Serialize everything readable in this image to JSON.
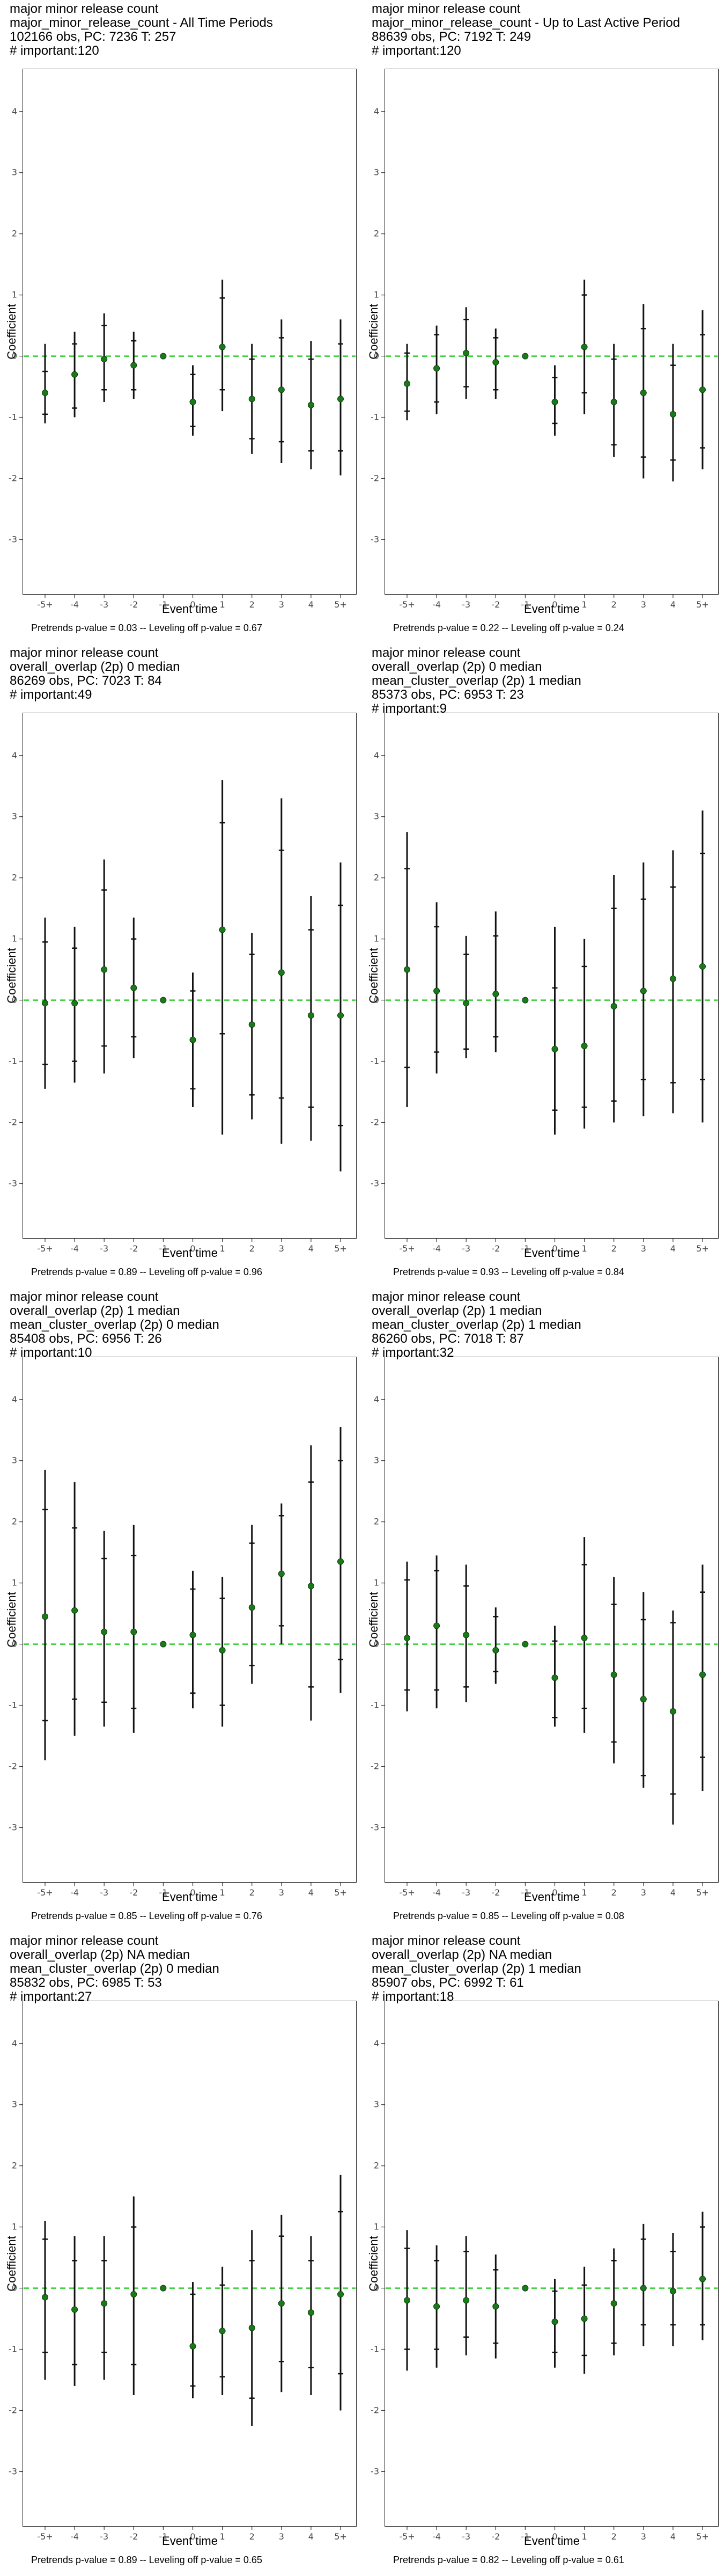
{
  "panels": [
    {
      "title_lines": [
        "major minor release count",
        "major_minor_release_count - All Time Periods",
        "102166 obs, PC: 7236 T: 257",
        "# important:120"
      ],
      "footer": "Pretrends p-value = 0.03 -- Leveling off p-value = 0.67"
    },
    {
      "title_lines": [
        "major minor release count",
        "major_minor_release_count - Up to Last Active Period",
        "88639 obs, PC: 7192 T: 249",
        "# important:120"
      ],
      "footer": "Pretrends p-value = 0.22 -- Leveling off p-value = 0.24"
    },
    {
      "title_lines": [
        "major minor release count",
        "overall_overlap (2p) 0 median",
        "86269 obs, PC: 7023 T: 84",
        "# important:49"
      ],
      "footer": "Pretrends p-value = 0.89 -- Leveling off p-value = 0.96"
    },
    {
      "title_lines": [
        "major minor release count",
        "overall_overlap (2p) 0 median",
        "mean_cluster_overlap (2p) 1 median",
        "85373 obs, PC: 6953 T: 23",
        "# important:9"
      ],
      "footer": "Pretrends p-value = 0.93 -- Leveling off p-value = 0.84"
    },
    {
      "title_lines": [
        "major minor release count",
        "overall_overlap (2p) 1 median",
        "mean_cluster_overlap (2p) 0 median",
        "85408 obs, PC: 6956 T: 26",
        "# important:10"
      ],
      "footer": "Pretrends p-value = 0.85 -- Leveling off p-value = 0.76"
    },
    {
      "title_lines": [
        "major minor release count",
        "overall_overlap (2p) 1 median",
        "mean_cluster_overlap (2p) 1 median",
        "86260 obs, PC: 7018 T: 87",
        "# important:32"
      ],
      "footer": "Pretrends p-value = 0.85 -- Leveling off p-value = 0.08"
    },
    {
      "title_lines": [
        "major minor release count",
        "overall_overlap (2p) NA median",
        "mean_cluster_overlap (2p) 0 median",
        "85832 obs, PC: 6985 T: 53",
        "# important:27"
      ],
      "footer": "Pretrends p-value = 0.89 -- Leveling off p-value = 0.65"
    },
    {
      "title_lines": [
        "major minor release count",
        "overall_overlap (2p) NA median",
        "mean_cluster_overlap (2p) 1 median",
        "85907 obs, PC: 6992 T: 61",
        "# important:18"
      ],
      "footer": "Pretrends p-value = 0.82 -- Leveling off p-value = 0.61"
    }
  ],
  "chart_data": [
    {
      "type": "scatter",
      "xlabel": "Event time",
      "ylabel": "Coefficient",
      "ylim": [
        -3.9,
        4.7
      ],
      "categories": [
        "-5+",
        "-4",
        "-3",
        "-2",
        "-1",
        "0",
        "1",
        "2",
        "3",
        "4",
        "5+"
      ],
      "ref_line": 0,
      "ref_color": "#33cc33",
      "point": [
        -0.6,
        -0.3,
        -0.05,
        -0.15,
        0,
        -0.75,
        0.15,
        -0.7,
        -0.55,
        -0.8,
        -0.7
      ],
      "ci_low": [
        -1.1,
        -1.0,
        -0.75,
        -0.7,
        0,
        -1.3,
        -0.9,
        -1.6,
        -1.75,
        -1.85,
        -1.95
      ],
      "ci_high": [
        0.2,
        0.4,
        0.7,
        0.4,
        0,
        -0.15,
        1.25,
        0.2,
        0.6,
        0.25,
        0.6
      ],
      "inner_low": [
        -0.95,
        -0.85,
        -0.55,
        -0.55,
        0,
        -1.15,
        -0.55,
        -1.35,
        -1.4,
        -1.55,
        -1.55
      ],
      "inner_high": [
        -0.25,
        0.2,
        0.5,
        0.25,
        0,
        -0.3,
        0.95,
        -0.05,
        0.3,
        -0.05,
        0.2
      ]
    },
    {
      "type": "scatter",
      "xlabel": "Event time",
      "ylabel": "Coefficient",
      "ylim": [
        -3.9,
        4.7
      ],
      "categories": [
        "-5+",
        "-4",
        "-3",
        "-2",
        "-1",
        "0",
        "1",
        "2",
        "3",
        "4",
        "5+"
      ],
      "ref_line": 0,
      "ref_color": "#33cc33",
      "point": [
        -0.45,
        -0.2,
        0.05,
        -0.1,
        0,
        -0.75,
        0.15,
        -0.75,
        -0.6,
        -0.95,
        -0.55
      ],
      "ci_low": [
        -1.05,
        -0.95,
        -0.7,
        -0.7,
        0,
        -1.3,
        -0.95,
        -1.65,
        -2.0,
        -2.05,
        -1.85
      ],
      "ci_high": [
        0.2,
        0.5,
        0.8,
        0.45,
        0,
        -0.15,
        1.25,
        0.2,
        0.85,
        0.2,
        0.75
      ],
      "inner_low": [
        -0.9,
        -0.75,
        -0.5,
        -0.55,
        0,
        -1.1,
        -0.6,
        -1.45,
        -1.65,
        -1.7,
        -1.5
      ],
      "inner_high": [
        0.05,
        0.35,
        0.6,
        0.3,
        0,
        -0.35,
        1.0,
        -0.05,
        0.45,
        -0.15,
        0.35
      ]
    },
    {
      "type": "scatter",
      "xlabel": "Event time",
      "ylabel": "Coefficient",
      "ylim": [
        -3.9,
        4.7
      ],
      "categories": [
        "-5+",
        "-4",
        "-3",
        "-2",
        "-1",
        "0",
        "1",
        "2",
        "3",
        "4",
        "5+"
      ],
      "ref_line": 0,
      "ref_color": "#33cc33",
      "point": [
        -0.05,
        -0.05,
        0.5,
        0.2,
        0,
        -0.65,
        1.15,
        -0.4,
        0.45,
        -0.25,
        -0.25
      ],
      "ci_low": [
        -1.45,
        -1.35,
        -1.2,
        -0.95,
        0,
        -1.75,
        -2.2,
        -1.95,
        -2.35,
        -2.3,
        -2.8
      ],
      "ci_high": [
        1.35,
        1.2,
        2.3,
        1.35,
        0,
        0.45,
        3.6,
        1.1,
        3.3,
        1.7,
        2.25
      ],
      "inner_low": [
        -1.05,
        -1.0,
        -0.75,
        -0.6,
        0,
        -1.45,
        -0.55,
        -1.55,
        -1.6,
        -1.75,
        -2.05
      ],
      "inner_high": [
        0.95,
        0.85,
        1.8,
        1.0,
        0,
        0.15,
        2.9,
        0.75,
        2.45,
        1.15,
        1.55
      ]
    },
    {
      "type": "scatter",
      "xlabel": "Event time",
      "ylabel": "Coefficient",
      "ylim": [
        -3.9,
        4.7
      ],
      "categories": [
        "-5+",
        "-4",
        "-3",
        "-2",
        "-1",
        "0",
        "1",
        "2",
        "3",
        "4",
        "5+"
      ],
      "ref_line": 0,
      "ref_color": "#33cc33",
      "point": [
        0.5,
        0.15,
        -0.05,
        0.1,
        0,
        -0.8,
        -0.75,
        -0.1,
        0.15,
        0.35,
        0.55
      ],
      "ci_low": [
        -1.75,
        -1.2,
        -0.95,
        -0.85,
        0,
        -2.2,
        -2.1,
        -2.0,
        -1.9,
        -1.85,
        -2.0
      ],
      "ci_high": [
        2.75,
        1.6,
        1.05,
        1.45,
        0,
        1.2,
        1.0,
        2.05,
        2.25,
        2.45,
        3.1
      ],
      "inner_low": [
        -1.1,
        -0.85,
        -0.8,
        -0.6,
        0,
        -1.8,
        -1.75,
        -1.65,
        -1.3,
        -1.35,
        -1.3
      ],
      "inner_high": [
        2.15,
        1.2,
        0.75,
        1.05,
        0,
        0.2,
        0.55,
        1.5,
        1.65,
        1.85,
        2.4
      ]
    },
    {
      "type": "scatter",
      "xlabel": "Event time",
      "ylabel": "Coefficient",
      "ylim": [
        -3.9,
        4.7
      ],
      "categories": [
        "-5+",
        "-4",
        "-3",
        "-2",
        "-1",
        "0",
        "1",
        "2",
        "3",
        "4",
        "5+"
      ],
      "ref_line": 0,
      "ref_color": "#33cc33",
      "point": [
        0.45,
        0.55,
        0.2,
        0.2,
        0,
        0.15,
        -0.1,
        0.6,
        1.15,
        0.95,
        1.35
      ],
      "ci_low": [
        -1.9,
        -1.5,
        -1.35,
        -1.45,
        0,
        -1.05,
        -1.35,
        -0.65,
        0.0,
        -1.25,
        -0.8
      ],
      "ci_high": [
        2.85,
        2.65,
        1.85,
        1.95,
        0,
        1.2,
        1.1,
        1.95,
        2.3,
        3.25,
        3.55
      ],
      "inner_low": [
        -1.25,
        -0.9,
        -0.95,
        -1.05,
        0,
        -0.8,
        -1.0,
        -0.35,
        0.3,
        -0.7,
        -0.25
      ],
      "inner_high": [
        2.2,
        1.9,
        1.4,
        1.45,
        0,
        0.9,
        0.75,
        1.65,
        2.1,
        2.65,
        3.0
      ]
    },
    {
      "type": "scatter",
      "xlabel": "Event time",
      "ylabel": "Coefficient",
      "ylim": [
        -3.9,
        4.7
      ],
      "categories": [
        "-5+",
        "-4",
        "-3",
        "-2",
        "-1",
        "0",
        "1",
        "2",
        "3",
        "4",
        "5+"
      ],
      "ref_line": 0,
      "ref_color": "#33cc33",
      "point": [
        0.1,
        0.3,
        0.15,
        -0.1,
        0,
        -0.55,
        0.1,
        -0.5,
        -0.9,
        -1.1,
        -0.5
      ],
      "ci_low": [
        -1.1,
        -1.05,
        -0.95,
        -0.65,
        0,
        -1.35,
        -1.45,
        -1.95,
        -2.35,
        -2.95,
        -2.4
      ],
      "ci_high": [
        1.35,
        1.45,
        1.3,
        0.6,
        0,
        0.3,
        1.75,
        1.1,
        0.85,
        0.55,
        1.3
      ],
      "inner_low": [
        -0.75,
        -0.75,
        -0.7,
        -0.45,
        0,
        -1.2,
        -1.05,
        -1.6,
        -2.15,
        -2.45,
        -1.85
      ],
      "inner_high": [
        1.05,
        1.2,
        0.95,
        0.45,
        0,
        0.05,
        1.3,
        0.65,
        0.4,
        0.35,
        0.85
      ]
    },
    {
      "type": "scatter",
      "xlabel": "Event time",
      "ylabel": "Coefficient",
      "ylim": [
        -3.9,
        4.7
      ],
      "categories": [
        "-5+",
        "-4",
        "-3",
        "-2",
        "-1",
        "0",
        "1",
        "2",
        "3",
        "4",
        "5+"
      ],
      "ref_line": 0,
      "ref_color": "#33cc33",
      "point": [
        -0.15,
        -0.35,
        -0.25,
        -0.1,
        0,
        -0.95,
        -0.7,
        -0.65,
        -0.25,
        -0.4,
        -0.1
      ],
      "ci_low": [
        -1.5,
        -1.6,
        -1.5,
        -1.75,
        0,
        -1.8,
        -1.75,
        -2.25,
        -1.7,
        -1.75,
        -2.0
      ],
      "ci_high": [
        1.1,
        0.85,
        0.85,
        1.5,
        0,
        0.1,
        0.35,
        0.95,
        1.2,
        0.85,
        1.85
      ],
      "inner_low": [
        -1.05,
        -1.25,
        -1.05,
        -1.25,
        0,
        -1.6,
        -1.45,
        -1.8,
        -1.2,
        -1.3,
        -1.4
      ],
      "inner_high": [
        0.8,
        0.45,
        0.45,
        1.0,
        0,
        -0.1,
        0.05,
        0.45,
        0.85,
        0.45,
        1.25
      ]
    },
    {
      "type": "scatter",
      "xlabel": "Event time",
      "ylabel": "Coefficient",
      "ylim": [
        -3.9,
        4.7
      ],
      "categories": [
        "-5+",
        "-4",
        "-3",
        "-2",
        "-1",
        "0",
        "1",
        "2",
        "3",
        "4",
        "5+"
      ],
      "ref_line": 0,
      "ref_color": "#33cc33",
      "point": [
        -0.2,
        -0.3,
        -0.2,
        -0.3,
        0,
        -0.55,
        -0.5,
        -0.25,
        0.0,
        -0.05,
        0.15
      ],
      "ci_low": [
        -1.35,
        -1.3,
        -1.1,
        -1.15,
        0,
        -1.3,
        -1.4,
        -1.1,
        -0.95,
        -0.95,
        -0.85
      ],
      "ci_high": [
        0.95,
        0.7,
        0.85,
        0.55,
        0,
        0.15,
        0.35,
        0.65,
        1.05,
        0.9,
        1.25
      ],
      "inner_low": [
        -1.0,
        -1.0,
        -0.8,
        -0.9,
        0,
        -1.05,
        -1.1,
        -0.9,
        -0.6,
        -0.6,
        -0.6
      ],
      "inner_high": [
        0.65,
        0.45,
        0.6,
        0.3,
        0,
        -0.05,
        0.05,
        0.45,
        0.8,
        0.6,
        1.0
      ]
    }
  ]
}
